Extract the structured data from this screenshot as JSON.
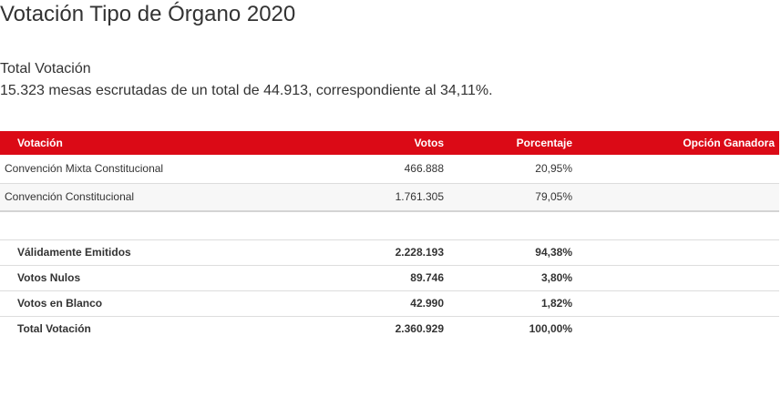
{
  "page": {
    "title": "Votación Tipo de Órgano 2020"
  },
  "summary": {
    "section_title": "Total Votación",
    "text": "15.323 mesas escrutadas de un total de 44.913, correspondiente al 34,11%."
  },
  "table": {
    "headers": {
      "votacion": "Votación",
      "votos": "Votos",
      "porcentaje": "Porcentaje",
      "ganadora": "Opción Ganadora"
    },
    "options": [
      {
        "name": "Convención Mixta Constitucional",
        "votos": "466.888",
        "porcentaje": "20,95%",
        "ganadora": ""
      },
      {
        "name": "Convención Constitucional",
        "votos": "1.761.305",
        "porcentaje": "79,05%",
        "ganadora": ""
      }
    ],
    "totals": [
      {
        "name": "Válidamente Emitidos",
        "votos": "2.228.193",
        "porcentaje": "94,38%"
      },
      {
        "name": "Votos Nulos",
        "votos": "89.746",
        "porcentaje": "3,80%"
      },
      {
        "name": "Votos en Blanco",
        "votos": "42.990",
        "porcentaje": "1,82%"
      },
      {
        "name": "Total Votación",
        "votos": "2.360.929",
        "porcentaje": "100,00%"
      }
    ]
  },
  "colors": {
    "header_background": "#db0a16",
    "header_text": "#ffffff",
    "text": "#333333"
  }
}
